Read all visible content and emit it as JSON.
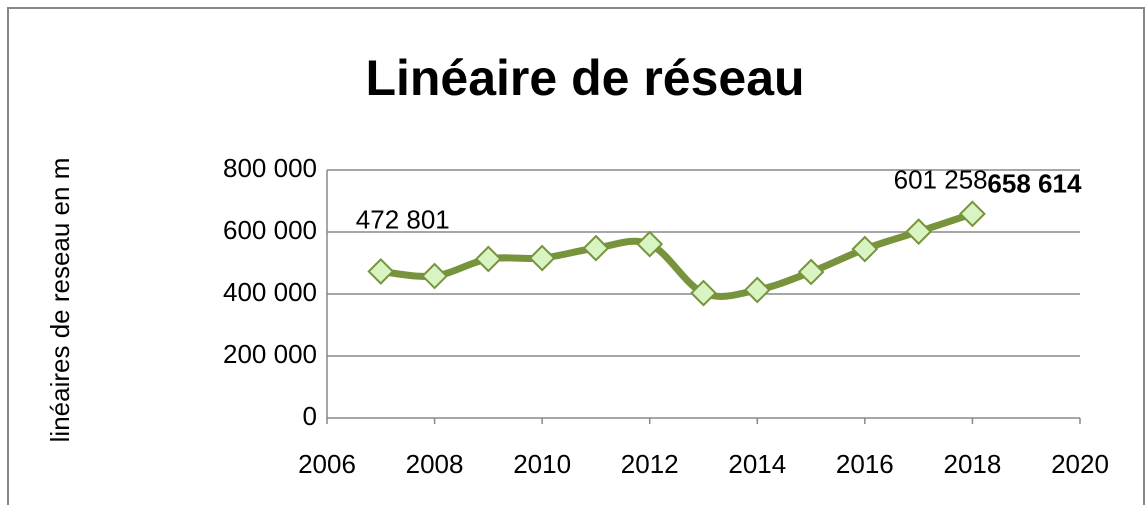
{
  "chart_data": {
    "type": "line",
    "title": "Linéaire de réseau",
    "y_label": "linéaires de reseau en m",
    "x": [
      2007,
      2008,
      2009,
      2010,
      2011,
      2012,
      2013,
      2014,
      2015,
      2016,
      2017,
      2018
    ],
    "series": [
      {
        "name": "Linéaire de réseau",
        "color": "#77933c",
        "marker_fill": "#d7f4c2",
        "values": [
          472801,
          458000,
          513000,
          516000,
          548000,
          561000,
          403000,
          413000,
          471000,
          545000,
          601258,
          658614
        ],
        "value_labels": [
          "472 801",
          null,
          null,
          null,
          null,
          null,
          null,
          null,
          null,
          null,
          "601 258",
          "658 614"
        ]
      }
    ],
    "xlim": [
      2006,
      2020
    ],
    "xticks": [
      2006,
      2008,
      2010,
      2012,
      2014,
      2016,
      2018,
      2020
    ],
    "ylim": [
      0,
      800000
    ],
    "yticks": [
      0,
      {
        "value": 200000,
        "label": "200 000"
      },
      {
        "value": 400000,
        "label": "400 000"
      },
      {
        "value": 600000,
        "label": "600 000"
      },
      {
        "value": 800000,
        "label": "800 000"
      }
    ],
    "grid": true,
    "smooth": true
  }
}
